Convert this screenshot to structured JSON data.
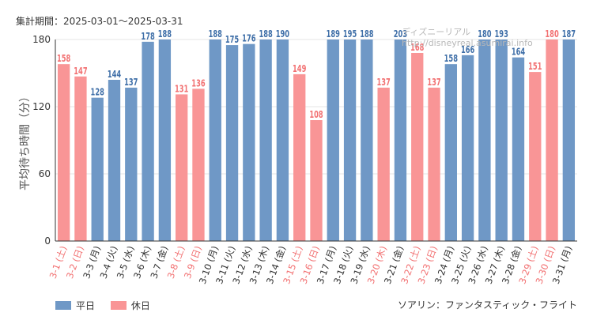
{
  "header": {
    "period_label": "集計期間：2025-03-01〜2025-03-31",
    "watermark": "ディズニーリアル http://disneyreal.asumirai.info"
  },
  "footer": {
    "attraction": "ソアリン：ファンタスティック・フライト"
  },
  "colors": {
    "weekday": "#6f98c6",
    "holiday": "#f99596",
    "weekday_label": "#3f6fa8",
    "holiday_label": "#f27172",
    "axis": "#333333",
    "grid": "#e6e6e6"
  },
  "chart_data": {
    "type": "bar",
    "ylabel": "平均待ち時間（分）",
    "ylim": [
      0,
      180
    ],
    "yticks": [
      0,
      60,
      120,
      180
    ],
    "grid": true,
    "legend_position": "bottom-left",
    "categories": [
      "3-1 (土)",
      "3-2 (日)",
      "3-3 (月)",
      "3-4 (火)",
      "3-5 (水)",
      "3-6 (木)",
      "3-7 (金)",
      "3-8 (土)",
      "3-9 (日)",
      "3-10 (月)",
      "3-11 (火)",
      "3-12 (水)",
      "3-13 (木)",
      "3-14 (金)",
      "3-15 (土)",
      "3-16 (日)",
      "3-17 (月)",
      "3-18 (火)",
      "3-19 (水)",
      "3-20 (木)",
      "3-21 (金)",
      "3-22 (土)",
      "3-23 (日)",
      "3-24 (月)",
      "3-25 (火)",
      "3-26 (水)",
      "3-27 (木)",
      "3-28 (金)",
      "3-29 (土)",
      "3-30 (日)",
      "3-31 (月)"
    ],
    "values": [
      158,
      147,
      128,
      144,
      137,
      178,
      188,
      131,
      136,
      188,
      175,
      176,
      188,
      190,
      149,
      108,
      189,
      195,
      188,
      137,
      203,
      168,
      137,
      158,
      166,
      180,
      193,
      164,
      151,
      180,
      187
    ],
    "day_type": [
      "holiday",
      "holiday",
      "weekday",
      "weekday",
      "weekday",
      "weekday",
      "weekday",
      "holiday",
      "holiday",
      "weekday",
      "weekday",
      "weekday",
      "weekday",
      "weekday",
      "holiday",
      "holiday",
      "weekday",
      "weekday",
      "weekday",
      "holiday",
      "weekday",
      "holiday",
      "holiday",
      "weekday",
      "weekday",
      "weekday",
      "weekday",
      "weekday",
      "holiday",
      "holiday",
      "weekday"
    ],
    "series": [
      {
        "name": "平日",
        "key": "weekday"
      },
      {
        "name": "休日",
        "key": "holiday"
      }
    ]
  }
}
